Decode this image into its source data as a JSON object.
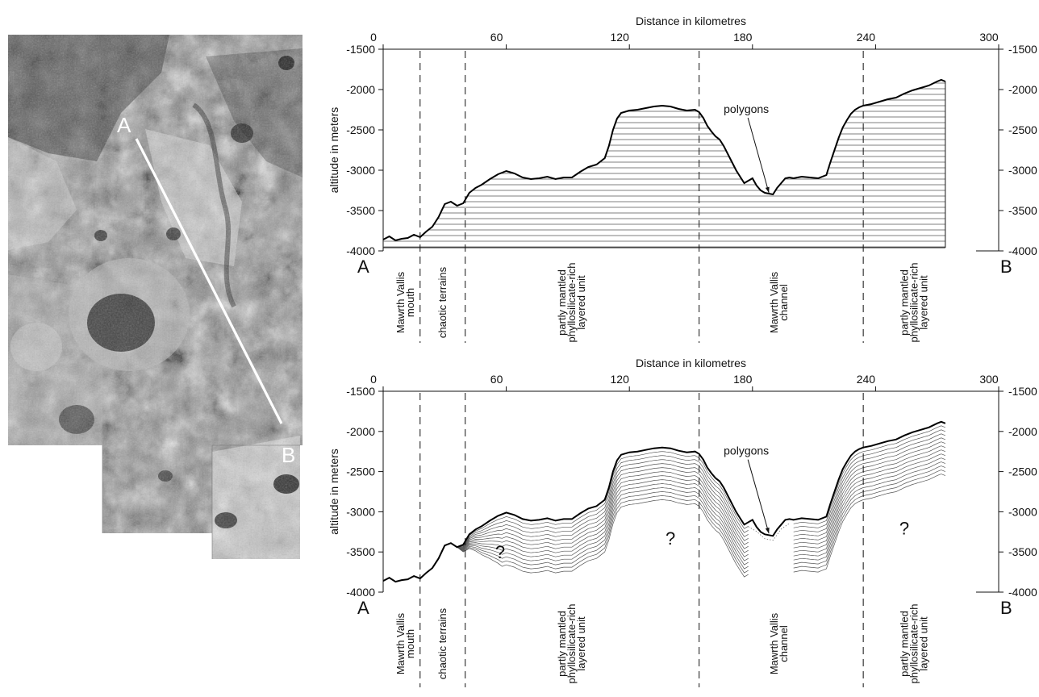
{
  "map": {
    "point_a": "A",
    "point_b": "B",
    "colors": {
      "line": "#ffffff",
      "dark": "#1e1e1e",
      "mid": "#8c8c8c",
      "light": "#dcdcdc"
    }
  },
  "chart_data": [
    {
      "type": "area",
      "title": "Distance in kilometres",
      "xlabel": "Distance in kilometres",
      "ylabel": "altitude in meters",
      "xlim": [
        0,
        300
      ],
      "ylim": [
        -4000,
        -1500
      ],
      "x_ticks": [
        0,
        60,
        120,
        180,
        240,
        300
      ],
      "y_ticks": [
        -1500,
        -2000,
        -2500,
        -3000,
        -3500,
        -4000
      ],
      "x_tick_labels": [
        "0",
        "60",
        "120",
        "180",
        "240",
        "300"
      ],
      "y_tick_labels": [
        "-1500",
        "-2000",
        "-2500",
        "-3000",
        "-3500",
        "-4000"
      ],
      "grid": false,
      "fill_style": "horizontal-hatch",
      "endpoints": [
        "A",
        "B"
      ],
      "boundaries_km": [
        18,
        40,
        154,
        234
      ],
      "units": [
        {
          "label_lines": [
            "Mawrth Vallis",
            "mouth"
          ],
          "x_km": 11
        },
        {
          "label_lines": [
            "chaotic terrains"
          ],
          "x_km": 29
        },
        {
          "label_lines": [
            "partly mantled",
            "phyllosilicate-rich",
            "layered unit"
          ],
          "x_km": 92
        },
        {
          "label_lines": [
            "Mawrth Vallis",
            "channel"
          ],
          "x_km": 193
        },
        {
          "label_lines": [
            "partly mantled",
            "phyllosilicate-rich",
            "layered unit"
          ],
          "x_km": 259
        }
      ],
      "annotations": [
        {
          "text": "polygons",
          "text_x_km": 177,
          "text_y": -2290,
          "arrow_to_x_km": 188,
          "arrow_to_y": -3280
        }
      ],
      "series": [
        {
          "x": [
            0,
            3,
            6,
            9,
            12,
            15,
            18,
            21,
            24,
            27,
            30,
            33,
            36,
            39,
            42,
            45,
            48,
            52,
            56,
            60,
            64,
            68,
            72,
            76,
            80,
            84,
            88,
            92,
            96,
            100,
            104,
            108,
            110,
            112,
            114,
            116,
            120,
            124,
            128,
            132,
            136,
            140,
            144,
            148,
            152,
            154,
            156,
            158,
            160,
            162,
            164,
            166,
            168,
            170,
            172,
            174,
            176,
            178,
            180,
            182,
            184,
            186,
            188,
            190,
            192,
            194,
            196,
            198,
            200,
            204,
            208,
            212,
            216,
            218,
            220,
            222,
            224,
            226,
            228,
            230,
            232,
            234,
            238,
            242,
            246,
            250,
            254,
            258,
            262,
            266,
            270,
            272,
            274
          ],
          "y": [
            -3860,
            -3820,
            -3870,
            -3850,
            -3840,
            -3800,
            -3830,
            -3760,
            -3700,
            -3580,
            -3420,
            -3390,
            -3440,
            -3410,
            -3280,
            -3220,
            -3180,
            -3110,
            -3050,
            -3010,
            -3040,
            -3090,
            -3110,
            -3100,
            -3080,
            -3110,
            -3090,
            -3090,
            -3020,
            -2960,
            -2930,
            -2850,
            -2700,
            -2500,
            -2360,
            -2290,
            -2260,
            -2250,
            -2230,
            -2210,
            -2200,
            -2210,
            -2240,
            -2260,
            -2250,
            -2280,
            -2350,
            -2450,
            -2520,
            -2580,
            -2620,
            -2700,
            -2800,
            -2900,
            -3000,
            -3080,
            -3160,
            -3130,
            -3100,
            -3190,
            -3250,
            -3280,
            -3290,
            -3300,
            -3220,
            -3160,
            -3100,
            -3090,
            -3100,
            -3080,
            -3090,
            -3100,
            -3060,
            -2900,
            -2750,
            -2600,
            -2470,
            -2380,
            -2300,
            -2250,
            -2220,
            -2200,
            -2180,
            -2150,
            -2120,
            -2100,
            -2050,
            -2010,
            -1980,
            -1950,
            -1900,
            -1880,
            -1900
          ]
        }
      ]
    },
    {
      "type": "line",
      "title": "Distance in kilometres",
      "xlabel": "Distance in kilometres",
      "ylabel": "altitude in meters",
      "xlim": [
        0,
        300
      ],
      "ylim": [
        -4000,
        -1500
      ],
      "x_ticks": [
        0,
        60,
        120,
        180,
        240,
        300
      ],
      "y_ticks": [
        -1500,
        -2000,
        -2500,
        -3000,
        -3500,
        -4000
      ],
      "x_tick_labels": [
        "0",
        "60",
        "120",
        "180",
        "240",
        "300"
      ],
      "y_tick_labels": [
        "-1500",
        "-2000",
        "-2500",
        "-3000",
        "-3500",
        "-4000"
      ],
      "grid": false,
      "endpoints": [
        "A",
        "B"
      ],
      "boundaries_km": [
        18,
        40,
        154,
        234
      ],
      "units": [
        {
          "label_lines": [
            "Mawrth Vallis",
            "mouth"
          ],
          "x_km": 11
        },
        {
          "label_lines": [
            "chaotic terrains"
          ],
          "x_km": 29
        },
        {
          "label_lines": [
            "partly mantled",
            "phyllosilicate-rich",
            "layered unit"
          ],
          "x_km": 92
        },
        {
          "label_lines": [
            "Mawrth Vallis",
            "channel"
          ],
          "x_km": 193
        },
        {
          "label_lines": [
            "partly mantled",
            "phyllosilicate-rich",
            "layered unit"
          ],
          "x_km": 259
        }
      ],
      "annotations": [
        {
          "text": "polygons",
          "text_x_km": 177,
          "text_y": -2290,
          "arrow_to_x_km": 188,
          "arrow_to_y": -3270
        },
        {
          "text": "?",
          "x_km": 57,
          "y": -3580
        },
        {
          "text": "?",
          "x_km": 140,
          "y": -3410
        },
        {
          "text": "?",
          "x_km": 254,
          "y": -3280
        }
      ],
      "layering": {
        "layer_count": 13,
        "layer_spacing_m": 50,
        "layers_start_km": 36,
        "layers_end_km": 274,
        "channel_gap_km": [
          178,
          200
        ]
      },
      "series": [
        {
          "x": [
            0,
            3,
            6,
            9,
            12,
            15,
            18,
            21,
            24,
            27,
            30,
            33,
            36,
            39,
            42,
            45,
            48,
            52,
            56,
            60,
            64,
            68,
            72,
            76,
            80,
            84,
            88,
            92,
            96,
            100,
            104,
            108,
            110,
            112,
            114,
            116,
            120,
            124,
            128,
            132,
            136,
            140,
            144,
            148,
            152,
            154,
            156,
            158,
            160,
            162,
            164,
            166,
            168,
            170,
            172,
            174,
            176,
            178,
            180,
            182,
            184,
            186,
            188,
            190,
            192,
            194,
            196,
            198,
            200,
            204,
            208,
            212,
            216,
            218,
            220,
            222,
            224,
            226,
            228,
            230,
            232,
            234,
            238,
            242,
            246,
            250,
            254,
            258,
            262,
            266,
            270,
            272,
            274
          ],
          "y": [
            -3860,
            -3820,
            -3870,
            -3850,
            -3840,
            -3800,
            -3830,
            -3760,
            -3700,
            -3580,
            -3420,
            -3390,
            -3440,
            -3410,
            -3280,
            -3220,
            -3180,
            -3110,
            -3050,
            -3010,
            -3040,
            -3090,
            -3110,
            -3100,
            -3080,
            -3110,
            -3090,
            -3090,
            -3020,
            -2960,
            -2930,
            -2850,
            -2700,
            -2500,
            -2360,
            -2290,
            -2260,
            -2250,
            -2230,
            -2210,
            -2200,
            -2210,
            -2240,
            -2260,
            -2250,
            -2280,
            -2350,
            -2450,
            -2520,
            -2580,
            -2620,
            -2700,
            -2800,
            -2900,
            -3000,
            -3080,
            -3160,
            -3130,
            -3100,
            -3190,
            -3250,
            -3280,
            -3290,
            -3300,
            -3220,
            -3160,
            -3100,
            -3090,
            -3100,
            -3080,
            -3090,
            -3100,
            -3060,
            -2900,
            -2750,
            -2600,
            -2470,
            -2380,
            -2300,
            -2250,
            -2220,
            -2200,
            -2180,
            -2150,
            -2120,
            -2100,
            -2050,
            -2010,
            -1980,
            -1950,
            -1900,
            -1880,
            -1900
          ]
        }
      ]
    }
  ]
}
